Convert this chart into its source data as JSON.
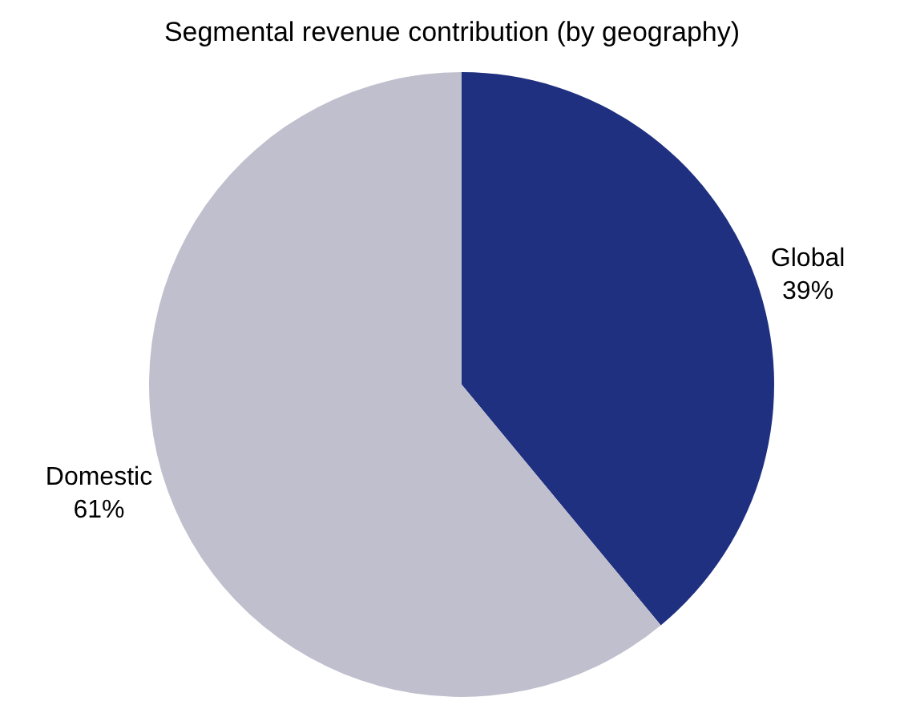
{
  "chart_data": {
    "type": "pie",
    "title": "Segmental revenue contribution (by geography)",
    "categories": [
      "Global",
      "Domestic"
    ],
    "values": [
      39,
      61
    ],
    "value_labels": [
      "39%",
      "61%"
    ],
    "colors": [
      "#203080",
      "#c0bfcd"
    ],
    "legend": false
  }
}
